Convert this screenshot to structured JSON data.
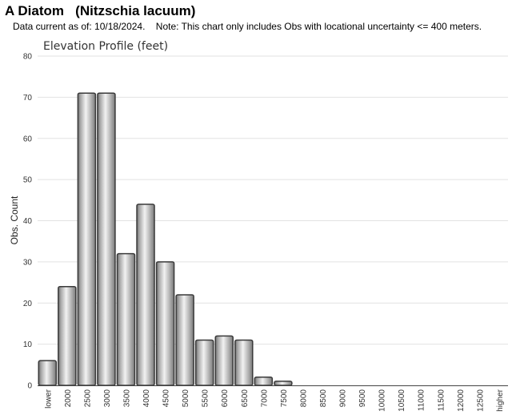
{
  "header": {
    "title": "A Diatom   (Nitzschia lacuum)",
    "subtitle": "Data current as of: 10/18/2024.    Note: This chart only includes Obs with locational uncertainty <= 400 meters."
  },
  "chart_data": {
    "type": "bar",
    "title": "Elevation Profile (feet)",
    "xlabel": "",
    "ylabel": "Obs. Count",
    "ylim": [
      0,
      80
    ],
    "yticks": [
      0,
      10,
      20,
      30,
      40,
      50,
      60,
      70,
      80
    ],
    "grid": true,
    "categories": [
      "lower",
      "2000",
      "2500",
      "3000",
      "3500",
      "4000",
      "4500",
      "5000",
      "5500",
      "6000",
      "6500",
      "7000",
      "7500",
      "8000",
      "8500",
      "9000",
      "9500",
      "10000",
      "10500",
      "11000",
      "11500",
      "12000",
      "12500",
      "higher"
    ],
    "values": [
      6,
      24,
      71,
      71,
      32,
      44,
      30,
      22,
      11,
      12,
      11,
      2,
      1,
      0,
      0,
      0,
      0,
      0,
      0,
      0,
      0,
      0,
      0,
      0
    ],
    "bar_color": "#b8b8b8"
  }
}
